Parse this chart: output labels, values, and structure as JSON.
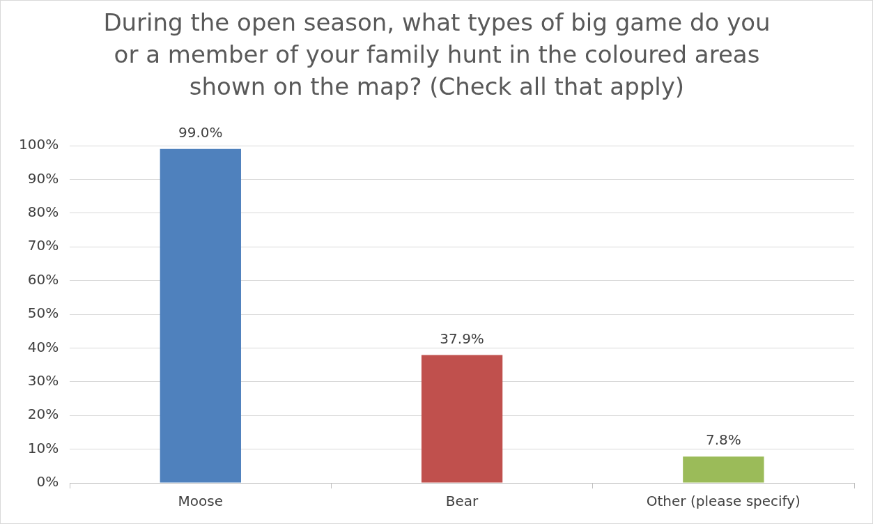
{
  "chart_data": {
    "type": "bar",
    "title": "During the open season, what types of big game do you or a member of your family hunt in the coloured areas shown on the map? (Check all that apply)",
    "categories": [
      "Moose",
      "Bear",
      "Other (please specify)"
    ],
    "values": [
      99.0,
      37.9,
      7.8
    ],
    "colors": [
      "#4f81bd",
      "#c0504d",
      "#9bbb59"
    ],
    "value_labels": [
      "99.0%",
      "37.9%",
      "7.8%"
    ],
    "ylim": [
      0,
      100
    ],
    "yticks": [
      {
        "value": 0,
        "label": "0%"
      },
      {
        "value": 10,
        "label": "10%"
      },
      {
        "value": 20,
        "label": "20%"
      },
      {
        "value": 30,
        "label": "30%"
      },
      {
        "value": 40,
        "label": "40%"
      },
      {
        "value": 50,
        "label": "50%"
      },
      {
        "value": 60,
        "label": "60%"
      },
      {
        "value": 70,
        "label": "70%"
      },
      {
        "value": 80,
        "label": "80%"
      },
      {
        "value": 90,
        "label": "90%"
      },
      {
        "value": 100,
        "label": "100%"
      }
    ],
    "grid": "y",
    "legend": false
  }
}
